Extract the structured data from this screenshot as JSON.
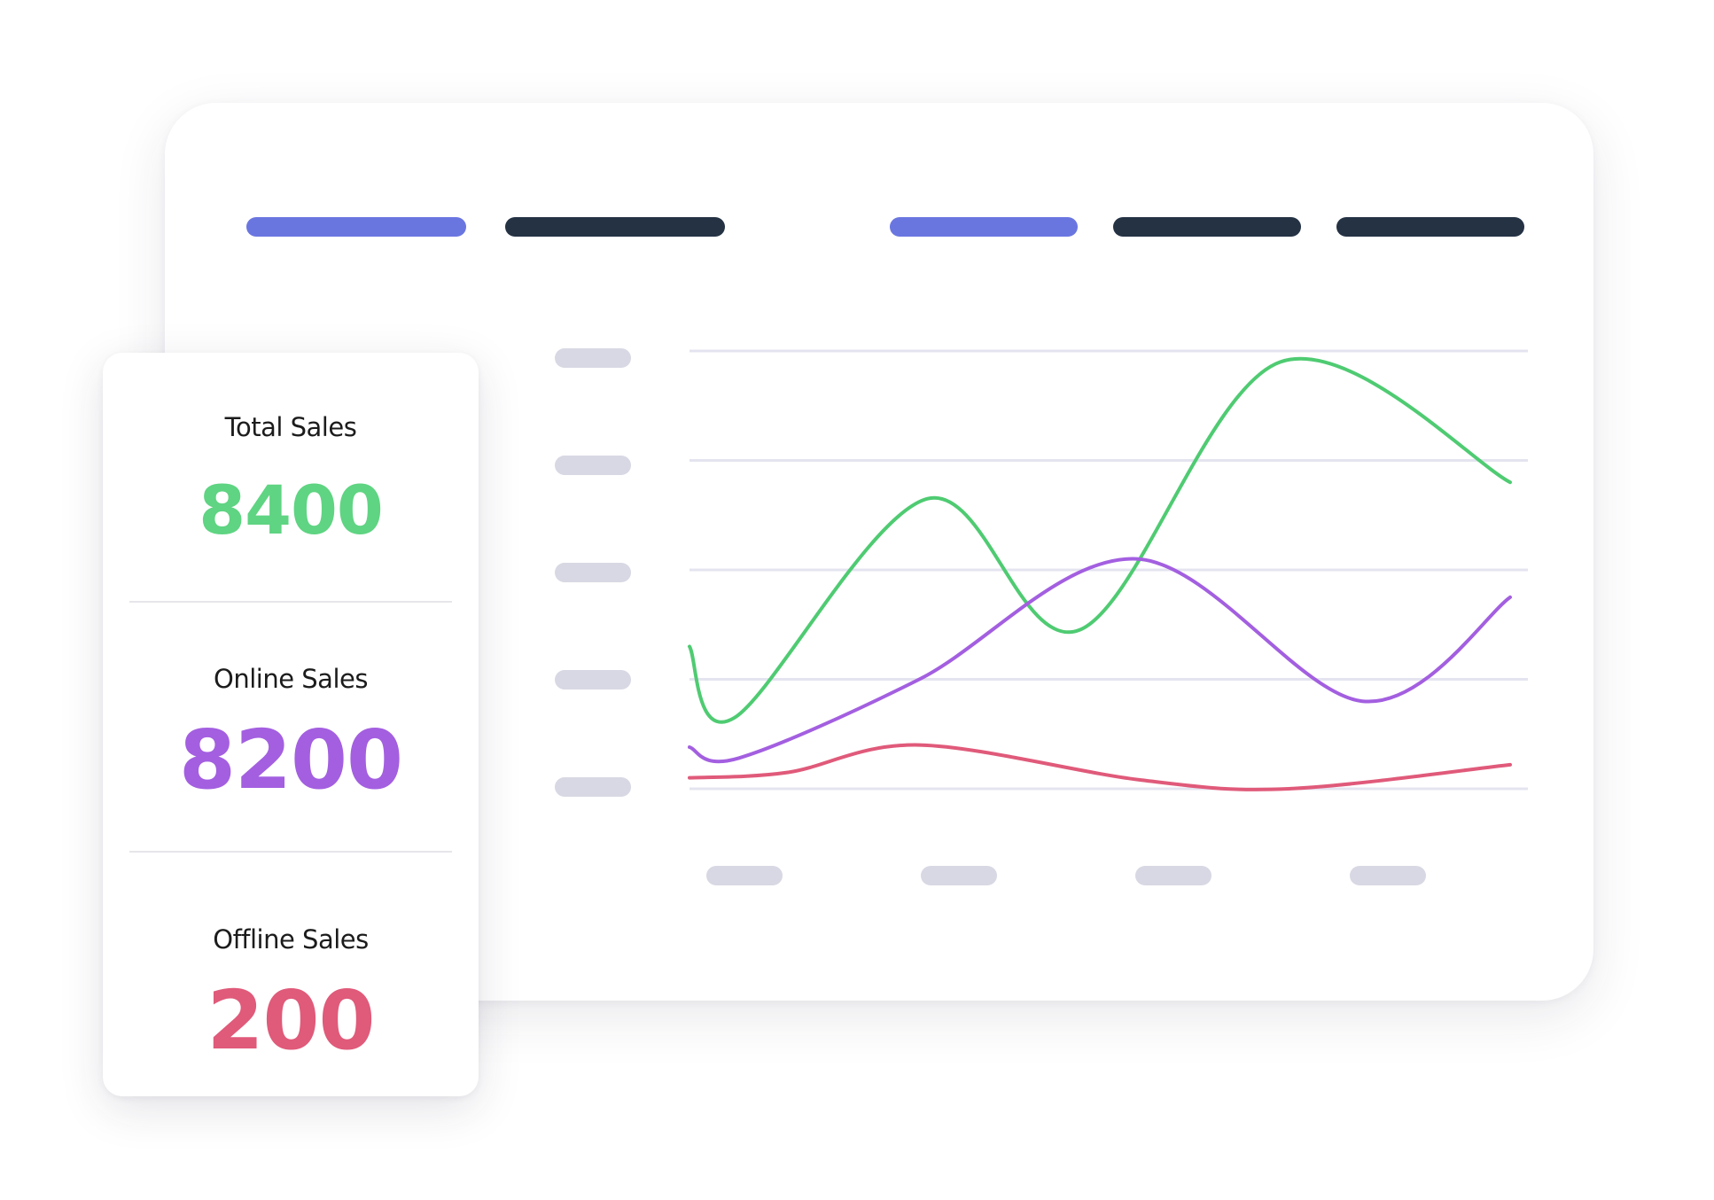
{
  "colors": {
    "accent_pill": "#6a76e0",
    "dark_pill": "#243244",
    "placeholder": "#d8d8e4",
    "gridline": "#e4e4f0",
    "total": "#5fd482",
    "online": "#a35fe0",
    "offline": "#e05a7a"
  },
  "tabs": [
    {
      "icon": "accent-pill"
    },
    {
      "icon": "dark-pill"
    },
    {
      "icon": "accent-pill"
    },
    {
      "icon": "dark-pill"
    },
    {
      "icon": "dark-pill"
    }
  ],
  "stats": {
    "total": {
      "label": "Total Sales",
      "value": "8400"
    },
    "online": {
      "label": "Online Sales",
      "value": "8200"
    },
    "offline": {
      "label": "Offline Sales",
      "value": "200"
    }
  },
  "chart_data": {
    "type": "line",
    "grid": true,
    "ylim": [
      0,
      4
    ],
    "xlim": [
      0,
      10
    ],
    "y_tick_count": 5,
    "x_tick_count": 4,
    "series": [
      {
        "color": "#4fcb72",
        "points": [
          [
            0,
            1.3
          ],
          [
            0.55,
            0.65
          ],
          [
            2.9,
            2.65
          ],
          [
            4.75,
            1.45
          ],
          [
            7.2,
            3.9
          ],
          [
            10,
            2.8
          ]
        ]
      },
      {
        "color": "#a35fe0",
        "points": [
          [
            0,
            0.38
          ],
          [
            0.6,
            0.28
          ],
          [
            2.8,
            1.0
          ],
          [
            5.45,
            2.1
          ],
          [
            8.2,
            0.8
          ],
          [
            10,
            1.75
          ]
        ]
      },
      {
        "color": "#e05a7a",
        "points": [
          [
            0,
            0.1
          ],
          [
            1.2,
            0.15
          ],
          [
            2.8,
            0.4
          ],
          [
            5.5,
            0.08
          ],
          [
            7.3,
            0.0
          ],
          [
            10,
            0.22
          ]
        ]
      }
    ]
  }
}
